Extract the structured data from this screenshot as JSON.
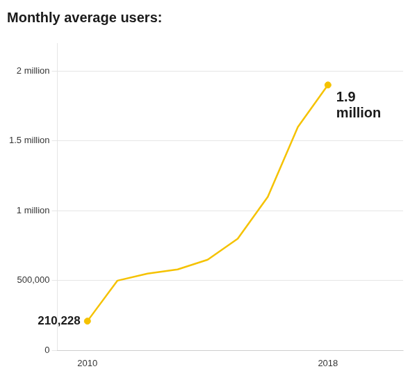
{
  "chart_data": {
    "type": "line",
    "title": "Monthly average users:",
    "x": [
      2010,
      2011,
      2012,
      2013,
      2014,
      2015,
      2016,
      2017,
      2018
    ],
    "values": [
      210228,
      500000,
      550000,
      580000,
      650000,
      800000,
      1100000,
      1600000,
      1900000
    ],
    "color": "#F5C200",
    "xlim": [
      2009.0,
      2020.5
    ],
    "xticks": [
      2010,
      2018
    ],
    "ylim": [
      0,
      2200000
    ],
    "yticks": [
      0,
      {
        "value": 500000,
        "label": "500,000"
      },
      {
        "value": 1000000,
        "label": "1 million"
      },
      {
        "value": 1500000,
        "label": "1.5 million"
      },
      {
        "value": 2000000,
        "label": "2 million"
      }
    ],
    "grid": "y",
    "marker": "circle",
    "annotations": [
      {
        "text": "210,228",
        "x": 2010,
        "y": 210228
      },
      {
        "text": "1.9\nmillion",
        "x": 2018,
        "y": 1900000
      }
    ]
  }
}
